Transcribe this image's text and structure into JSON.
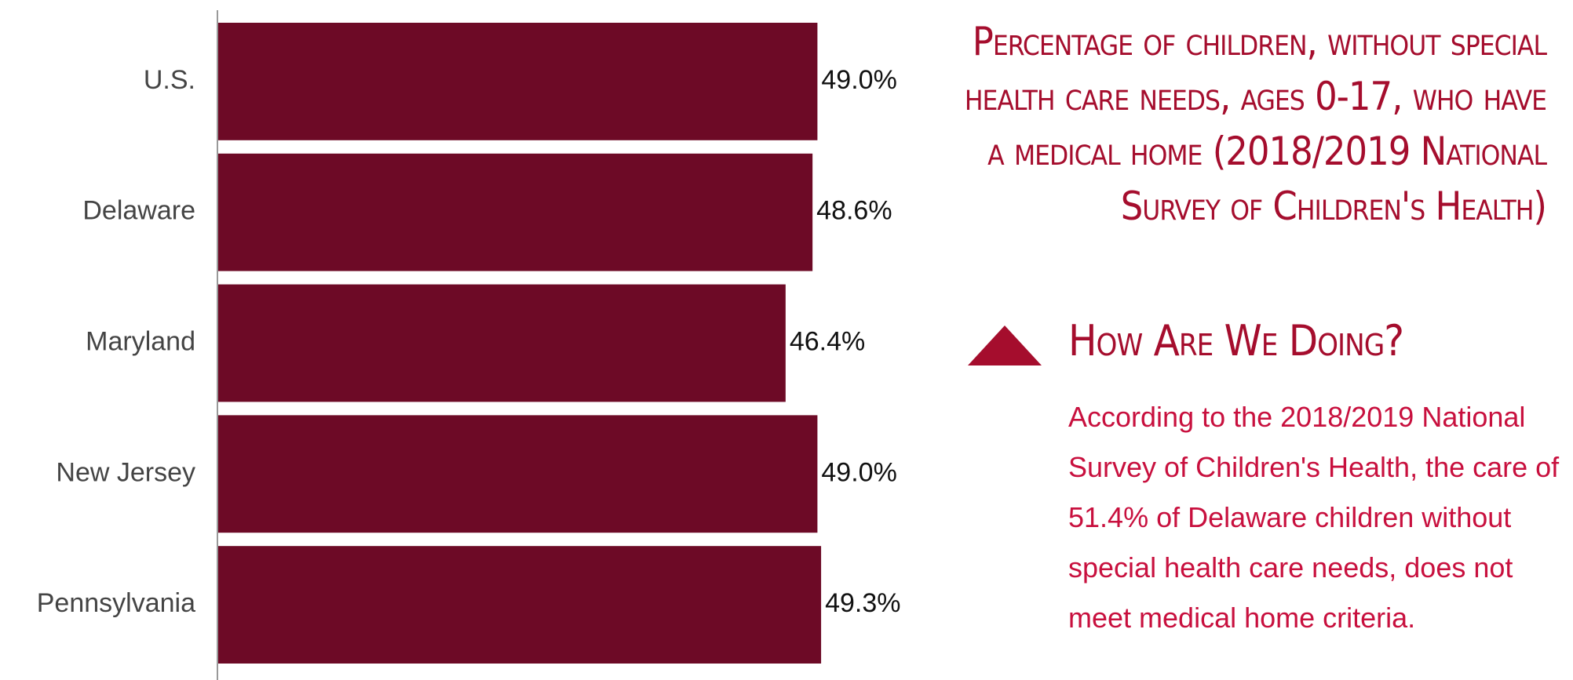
{
  "chart_data": {
    "type": "bar",
    "orientation": "horizontal",
    "title": "Percentage of children, without special health care needs, ages 0-17, who have a medical home (2018/2019 National Survey of Children's Health)",
    "categories": [
      "U.S.",
      "Delaware",
      "Maryland",
      "New Jersey",
      "Pennsylvania"
    ],
    "values": [
      49.0,
      48.6,
      46.4,
      49.0,
      49.3
    ],
    "value_labels": [
      "49.0%",
      "48.6%",
      "46.4%",
      "49.0%",
      "49.3%"
    ],
    "color": "#6d0a26",
    "xlim": [
      0,
      80
    ]
  },
  "panel": {
    "heading": "How Are We Doing?",
    "text": "According to the 2018/2019 National Survey of Children's Health, the care of 51.4% of Delaware children without special health care needs, does not meet medical home criteria."
  }
}
